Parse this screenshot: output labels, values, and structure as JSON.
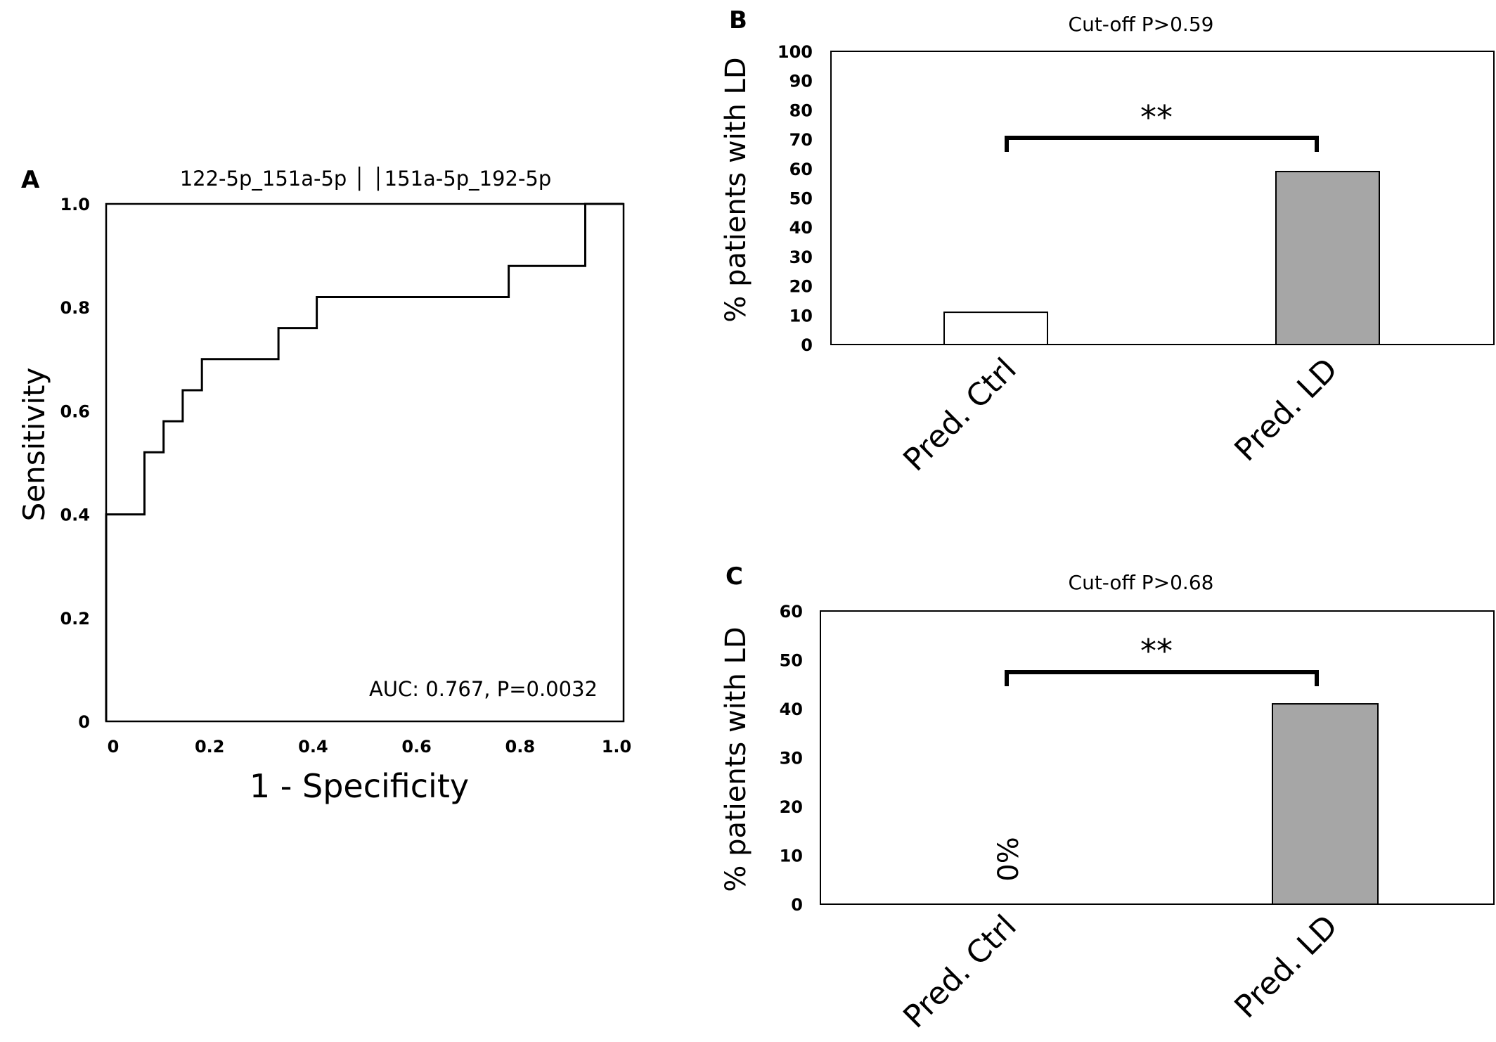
{
  "chart_data": [
    {
      "id": "A",
      "type": "line",
      "panel_label": "A",
      "title": "122-5p_151a-5p │ │151a-5p_192-5p",
      "xlabel": "1 - Specificity",
      "ylabel": "Sensitivity",
      "xlim": [
        0,
        1
      ],
      "ylim": [
        0,
        1
      ],
      "x_ticks": [
        "0",
        "0.2",
        "0.4",
        "0.6",
        "0.8",
        "1.0"
      ],
      "y_ticks": [
        "0",
        "0.2",
        "0.4",
        "0.6",
        "0.8",
        "1.0"
      ],
      "annotation": "AUC: 0.767, P=0.0032",
      "grid": false,
      "series": [
        {
          "x": [
            0,
            0,
            0.074,
            0.074,
            0.111,
            0.111,
            0.148,
            0.148,
            0.185,
            0.185,
            0.333,
            0.333,
            0.407,
            0.407,
            0.778,
            0.778,
            0.926,
            0.926,
            1.0
          ],
          "y": [
            0,
            0.4,
            0.4,
            0.52,
            0.52,
            0.58,
            0.58,
            0.64,
            0.64,
            0.7,
            0.7,
            0.76,
            0.76,
            0.82,
            0.82,
            0.88,
            0.88,
            1.0,
            1.0
          ]
        }
      ]
    },
    {
      "id": "B",
      "type": "bar",
      "panel_label": "B",
      "title": "Cut-off P>0.59",
      "ylabel": "% patients with LD",
      "categories": [
        "Pred. Ctrl",
        "Pred. LD"
      ],
      "values": [
        11,
        59
      ],
      "bar_colors": [
        "#ffffff",
        "#a6a6a6"
      ],
      "ylim": [
        0,
        100
      ],
      "y_ticks": [
        "0",
        "10",
        "20",
        "30",
        "40",
        "50",
        "60",
        "70",
        "80",
        "90",
        "100"
      ],
      "significance": "**",
      "grid": false
    },
    {
      "id": "C",
      "type": "bar",
      "panel_label": "C",
      "title": "Cut-off P>0.68",
      "ylabel": "% patients with LD",
      "categories": [
        "Pred. Ctrl",
        "Pred. LD"
      ],
      "values": [
        0,
        41
      ],
      "bar_colors": [
        "#ffffff",
        "#a6a6a6"
      ],
      "ylim": [
        0,
        60
      ],
      "y_ticks": [
        "0",
        "10",
        "20",
        "30",
        "40",
        "50",
        "60"
      ],
      "significance": "**",
      "zero_label": "0%",
      "grid": false
    }
  ]
}
